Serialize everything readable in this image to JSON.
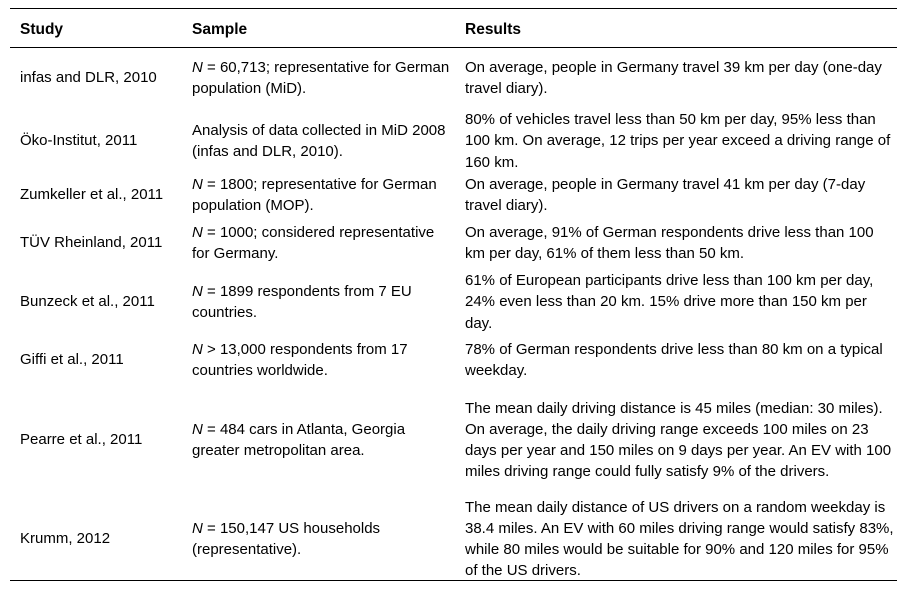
{
  "headers": {
    "study": "Study",
    "sample": "Sample",
    "results": "Results"
  },
  "rows": [
    {
      "study": "infas and DLR, 2010",
      "sample_n": "N",
      "sample": " = 60,713; representative for German population (MiD).",
      "results": "On average, people in Germany travel 39 km per day (one-day travel diary)."
    },
    {
      "study": "Öko-Institut, 2011",
      "sample_n": "",
      "sample": "Analysis of data collected in MiD 2008 (infas and DLR, 2010).",
      "results": "80% of vehicles travel less than 50 km per day, 95% less than 100 km. On average, 12 trips per year exceed a driving range of 160 km."
    },
    {
      "study": "Zumkeller et al., 2011",
      "sample_n": "N",
      "sample": " = 1800; representative for German population (MOP).",
      "results": "On average, people in Germany travel 41 km per day (7-day travel diary)."
    },
    {
      "study": "TÜV Rheinland, 2011",
      "sample_n": "N",
      "sample": " = 1000; considered representative for Germany.",
      "results": "On average, 91% of German respondents drive less than 100 km per day, 61% of them less than 50 km."
    },
    {
      "study": "Bunzeck et al., 2011",
      "sample_n": "N",
      "sample": " = 1899 respondents from 7 EU countries.",
      "results": "61% of European participants drive less than 100 km per day, 24% even less than 20 km. 15% drive more than 150 km per day."
    },
    {
      "study": "Giffi et al., 2011",
      "sample_n": "N",
      "sample": " > 13,000 respondents from 17 countries worldwide.",
      "results": "78% of German respondents drive less than 80 km on a typical weekday."
    },
    {
      "study": "Pearre et al., 2011",
      "sample_n": "N",
      "sample": " = 484 cars in Atlanta, Georgia greater metropolitan area.",
      "results": "The mean daily driving distance is 45 miles (median: 30 miles). On average, the daily driving range exceeds 100 miles on 23 days per year and 150 miles on 9 days per year. An EV with 100 miles driving range could fully satisfy 9% of the drivers."
    },
    {
      "study": "Krumm, 2012",
      "sample_n": "N",
      "sample": " = 150,147 US households (representative).",
      "results": "The mean daily distance of US drivers on a random weekday is 38.4 miles. An EV with 60 miles driving range would satisfy 83%, while 80 miles would be suitable for 90% and 120 miles for 95% of the US drivers."
    }
  ]
}
